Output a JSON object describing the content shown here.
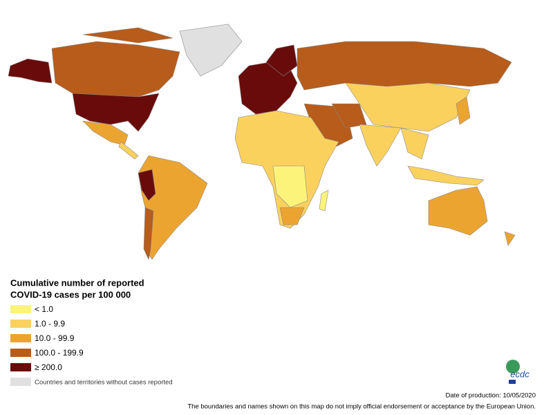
{
  "legend": {
    "title": [
      "Cumulative number of reported",
      "COVID-19 cases per 100 000"
    ],
    "items": [
      {
        "label": "< 1.0",
        "color": "#fcf37a"
      },
      {
        "label": "1.0 - 9.9",
        "color": "#fbd15e"
      },
      {
        "label": "10.0 - 99.9",
        "color": "#eca431"
      },
      {
        "label": "100.0 - 199.9",
        "color": "#b75c1b"
      },
      {
        "label": "≥ 200.0",
        "color": "#6a0b0b"
      },
      {
        "label": "Countries and territories without cases reported",
        "color": "#e0e0e0"
      }
    ]
  },
  "footer": {
    "date": "Date of production: 10/05/2020",
    "disclaimer": "The boundaries and names shown on this map do not imply official endorsement or acceptance by the European Union."
  },
  "logo": {
    "text": "ecdc"
  }
}
